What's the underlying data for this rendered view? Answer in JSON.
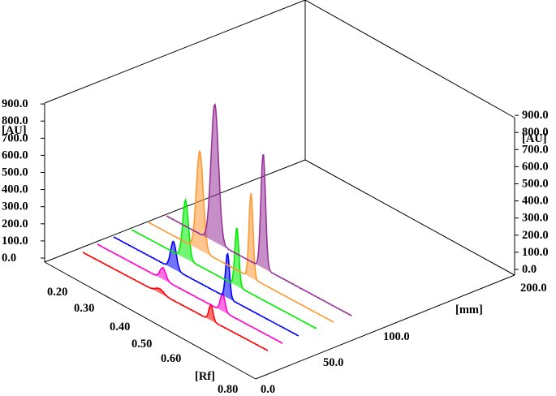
{
  "chart_data": {
    "type": "3d-densitogram",
    "title": "",
    "z_axis": {
      "unit_label": "[AU]",
      "ticks": [
        "0.0",
        "100.0",
        "200.0",
        "300.0",
        "400.0",
        "500.0",
        "600.0",
        "700.0",
        "800.0",
        "900.0"
      ],
      "range": [
        0,
        900
      ]
    },
    "rf_axis": {
      "unit_label": "[Rf]",
      "ticks": [
        "0.20",
        "0.30",
        "0.40",
        "0.50",
        "0.60",
        "0.80"
      ],
      "range": [
        0.15,
        0.8
      ]
    },
    "track_axis": {
      "unit_label": "[mm]",
      "ticks": [
        "0.0",
        "50.0",
        "100.0",
        "200.0"
      ],
      "range": [
        0,
        200
      ]
    },
    "grid": false,
    "series": [
      {
        "color": "#ff0000",
        "peaks": [
          {
            "rf": 0.42,
            "height": 25,
            "width": 0.014
          },
          {
            "rf": 0.6,
            "height": 90,
            "width": 0.007
          }
        ]
      },
      {
        "color": "#ff00cc",
        "peaks": [
          {
            "rf": 0.38,
            "height": 65,
            "width": 0.01
          },
          {
            "rf": 0.59,
            "height": 100,
            "width": 0.008
          }
        ]
      },
      {
        "color": "#0000ff",
        "peaks": [
          {
            "rf": 0.36,
            "height": 155,
            "width": 0.01
          },
          {
            "rf": 0.55,
            "height": 250,
            "width": 0.007
          }
        ]
      },
      {
        "color": "#00ee00",
        "peaks": [
          {
            "rf": 0.34,
            "height": 330,
            "width": 0.01
          },
          {
            "rf": 0.52,
            "height": 330,
            "width": 0.007
          }
        ]
      },
      {
        "color": "#ff9933",
        "peaks": [
          {
            "rf": 0.33,
            "height": 560,
            "width": 0.012
          },
          {
            "rf": 0.51,
            "height": 480,
            "width": 0.007
          }
        ]
      },
      {
        "color": "#993399",
        "peaks": [
          {
            "rf": 0.32,
            "height": 780,
            "width": 0.013
          },
          {
            "rf": 0.49,
            "height": 650,
            "width": 0.008
          }
        ]
      }
    ]
  }
}
